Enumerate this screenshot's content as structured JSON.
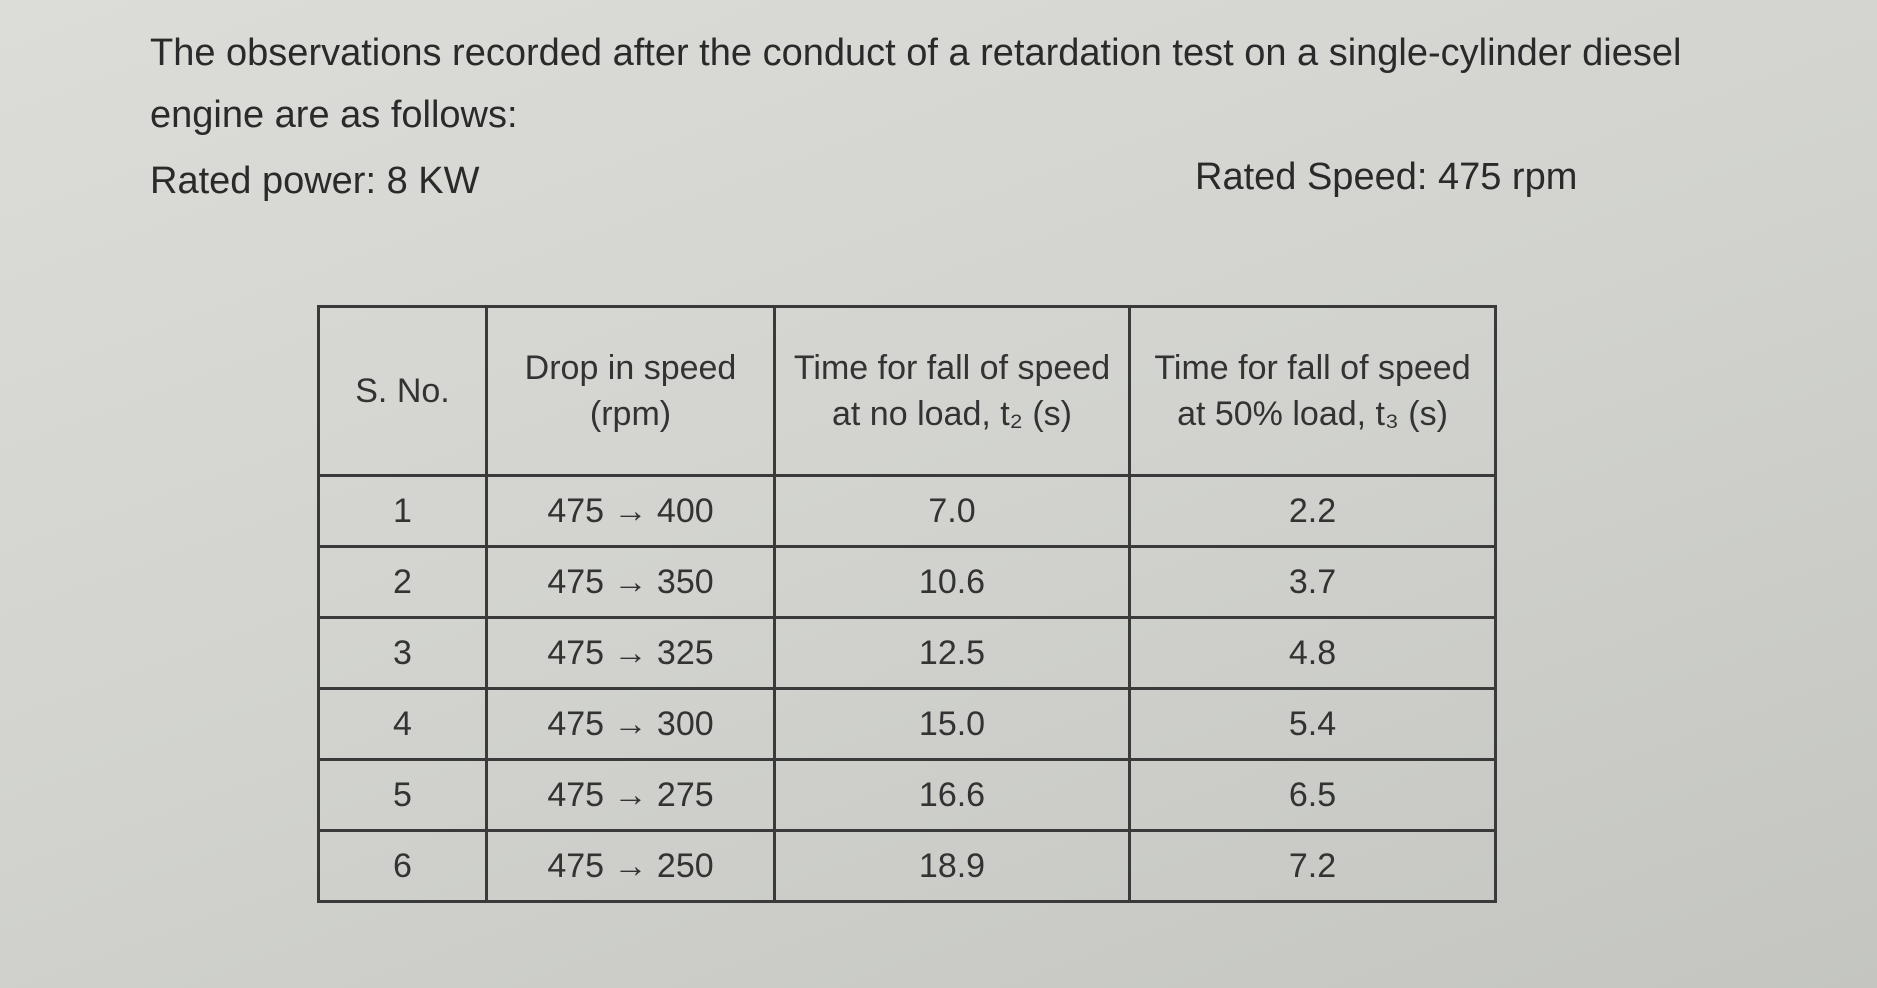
{
  "intro": {
    "text": "The observations recorded after the conduct of a retardation test on a single-cylinder diesel engine are as follows:"
  },
  "specs": {
    "rated_power": "Rated power: 8 KW",
    "rated_speed": "Rated Speed: 475 rpm"
  },
  "table": {
    "header": [
      "S. No.",
      "Drop in speed (rpm)",
      "Time for fall of speed at no load, t₂ (s)",
      "Time for fall of speed at 50% load, t₃ (s)"
    ],
    "rows": [
      [
        "1",
        "475 → 400",
        "7.0",
        "2.2"
      ],
      [
        "2",
        "475 → 350",
        "10.6",
        "3.7"
      ],
      [
        "3",
        "475 → 325",
        "12.5",
        "4.8"
      ],
      [
        "4",
        "475 → 300",
        "15.0",
        "5.4"
      ],
      [
        "5",
        "475 → 275",
        "16.6",
        "6.5"
      ],
      [
        "6",
        "475 → 250",
        "18.9",
        "7.2"
      ]
    ]
  }
}
